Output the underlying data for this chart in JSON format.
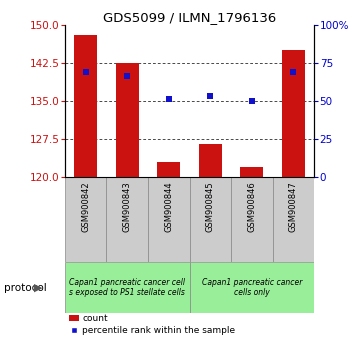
{
  "title": "GDS5099 / ILMN_1796136",
  "samples": [
    "GSM900842",
    "GSM900843",
    "GSM900844",
    "GSM900845",
    "GSM900846",
    "GSM900847"
  ],
  "bar_values": [
    148.0,
    142.5,
    123.0,
    126.5,
    122.0,
    145.0
  ],
  "bar_bottom": 120,
  "percentile_values": [
    140.8,
    140.0,
    135.5,
    136.0,
    135.0,
    140.8
  ],
  "left_ylim": [
    120,
    150
  ],
  "left_yticks": [
    120,
    127.5,
    135,
    142.5,
    150
  ],
  "right_ylim": [
    0,
    100
  ],
  "right_yticks": [
    0,
    25,
    50,
    75,
    100
  ],
  "right_yticklabels": [
    "0",
    "25",
    "50",
    "75",
    "100%"
  ],
  "bar_color": "#cc1111",
  "percentile_color": "#1111cc",
  "protocol_groups": [
    {
      "label": "Capan1 pancreatic cancer cell\ns exposed to PS1 stellate cells",
      "samples": [
        0,
        1,
        2
      ],
      "color": "#99ee99"
    },
    {
      "label": "Capan1 pancreatic cancer\ncells only",
      "samples": [
        3,
        4,
        5
      ],
      "color": "#99ee99"
    }
  ],
  "legend_count_label": "count",
  "legend_percentile_label": "percentile rank within the sample",
  "protocol_label": "protocol",
  "bg_color": "#ffffff",
  "plot_bg_color": "#ffffff",
  "tick_label_color_left": "#cc1111",
  "tick_label_color_right": "#0000cc",
  "grid_color": "#000000",
  "xlabel_bg": "#cccccc"
}
